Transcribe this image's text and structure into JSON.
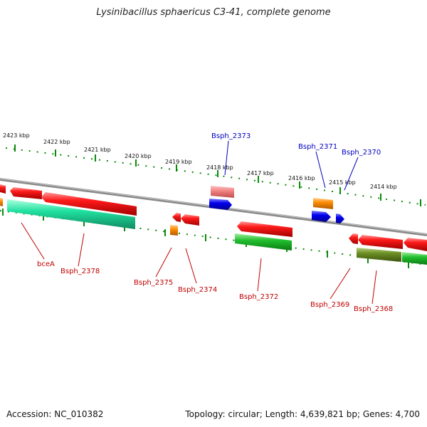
{
  "title": "Lysinibacillus sphaericus C3-41, complete genome",
  "kbp_ticks": [
    "2423 kbp",
    "2422 kbp",
    "2421 kbp",
    "2420 kbp",
    "2419 kbp",
    "2418 kbp",
    "2417 kbp",
    "2416 kbp",
    "2415 kbp",
    "2414 kbp"
  ],
  "gene_labels": {
    "Bsph_2373": "Bsph_2373",
    "Bsph_2371": "Bsph_2371",
    "Bsph_2370": "Bsph_2370",
    "bceA": "bceA",
    "Bsph_2378": "Bsph_2378",
    "Bsph_2375": "Bsph_2375",
    "Bsph_2374": "Bsph_2374",
    "Bsph_2372": "Bsph_2372",
    "Bsph_2369": "Bsph_2369",
    "Bsph_2368": "Bsph_2368"
  },
  "footer": {
    "accession": "Accession: NC_010382",
    "summary": "Topology: circular; Length: 4,639,821 bp; Genes: 4,700"
  },
  "colors": {
    "forward_cds": "#e00000",
    "reverse_cds": "#10c020",
    "highlight_cyan": "#20e0a0",
    "orange_rna": "#ff8c00",
    "blue_feature": "#0000e0",
    "pink_feature": "#f08080",
    "olive_feature": "#6b8e23",
    "tick_green": "#0a8a0a",
    "red_label": "#c00000",
    "blue_label": "#0000c0"
  }
}
